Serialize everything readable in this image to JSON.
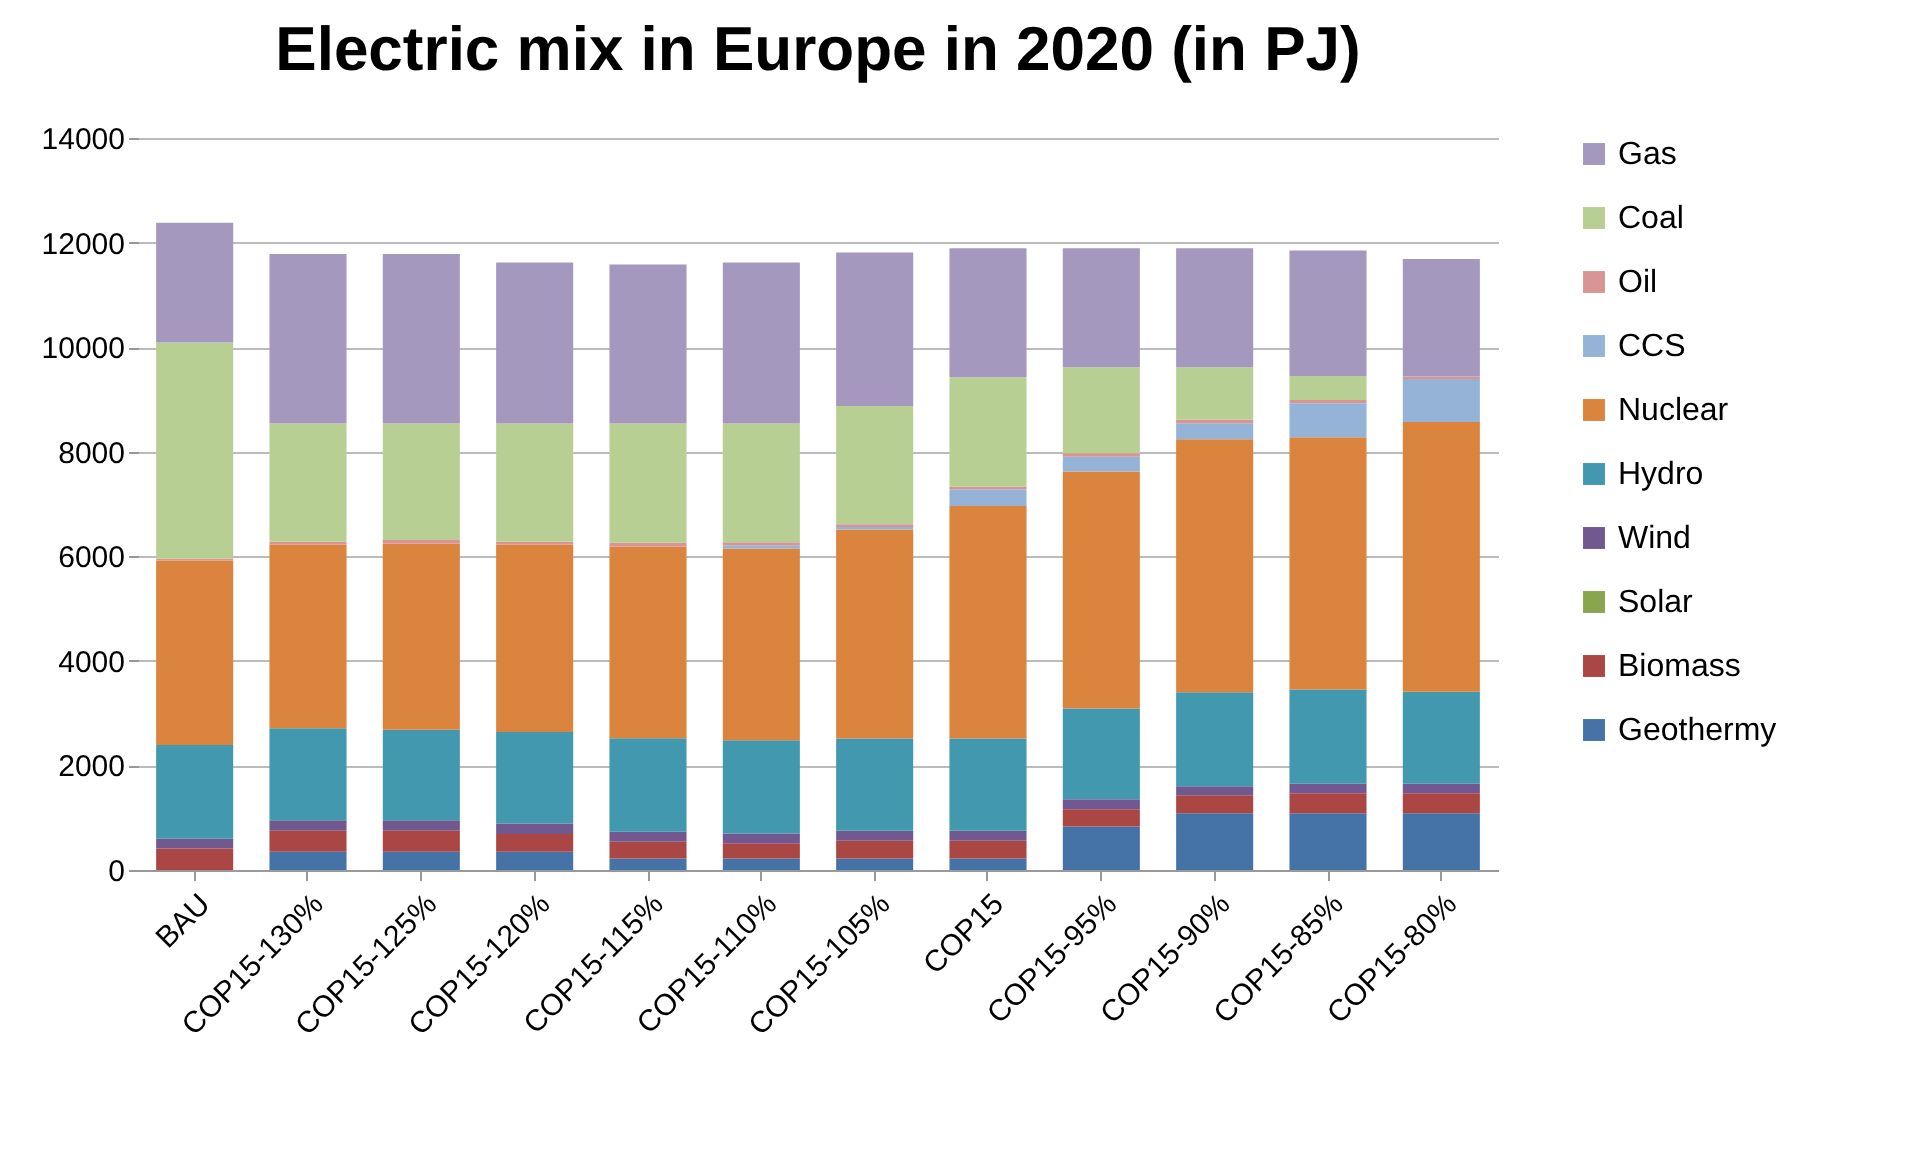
{
  "chart_data": {
    "type": "bar",
    "title": "Electric mix in Europe in 2020 (in PJ)",
    "stacked": true,
    "legend": "right",
    "grid": "y",
    "categories": [
      "BAU",
      "COP15-130%",
      "COP15-125%",
      "COP15-120%",
      "COP15-115%",
      "COP15-110%",
      "COP15-105%",
      "COP15",
      "COP15-95%",
      "COP15-90%",
      "COP15-85%",
      "COP15-80%"
    ],
    "ylim": [
      0,
      14000
    ],
    "yticks": [
      0,
      2000,
      4000,
      6000,
      8000,
      10000,
      12000,
      14000
    ],
    "series": [
      {
        "name": "Geothermy",
        "color": "#4572a7",
        "values": [
          0,
          350,
          350,
          350,
          220,
          220,
          220,
          220,
          830,
          1085,
          1085,
          1085
        ]
      },
      {
        "name": "Biomass",
        "color": "#aa4643",
        "values": [
          410,
          400,
          400,
          340,
          320,
          290,
          340,
          340,
          330,
          345,
          385,
          385
        ]
      },
      {
        "name": "Solar",
        "color": "#89a54e",
        "values": [
          0,
          0,
          0,
          0,
          0,
          0,
          0,
          0,
          0,
          0,
          0,
          0
        ]
      },
      {
        "name": "Wind",
        "color": "#71588f",
        "values": [
          190,
          200,
          200,
          200,
          190,
          190,
          190,
          190,
          195,
          170,
          180,
          180
        ]
      },
      {
        "name": "Hydro",
        "color": "#4198af",
        "values": [
          1790,
          1760,
          1730,
          1750,
          1790,
          1780,
          1765,
          1765,
          1735,
          1800,
          1800,
          1760
        ]
      },
      {
        "name": "Nuclear",
        "color": "#db843d",
        "values": [
          3530,
          3510,
          3560,
          3580,
          3660,
          3670,
          3995,
          4445,
          4530,
          4840,
          4825,
          5160
        ]
      },
      {
        "name": "CCS",
        "color": "#95b3d7",
        "values": [
          0,
          0,
          0,
          0,
          0,
          60,
          50,
          320,
          285,
          305,
          650,
          820
        ]
      },
      {
        "name": "Oil",
        "color": "#d99594",
        "values": [
          40,
          60,
          70,
          60,
          80,
          60,
          55,
          50,
          65,
          65,
          65,
          50
        ]
      },
      {
        "name": "Coal",
        "color": "#b8cf93",
        "values": [
          4130,
          2260,
          2230,
          2260,
          2280,
          2270,
          2260,
          2095,
          1645,
          1005,
          460,
          0
        ]
      },
      {
        "name": "Gas",
        "color": "#a598bf",
        "values": [
          2290,
          3240,
          3240,
          3080,
          3040,
          3080,
          2935,
          2465,
          2275,
          2275,
          2400,
          2245
        ]
      }
    ]
  }
}
